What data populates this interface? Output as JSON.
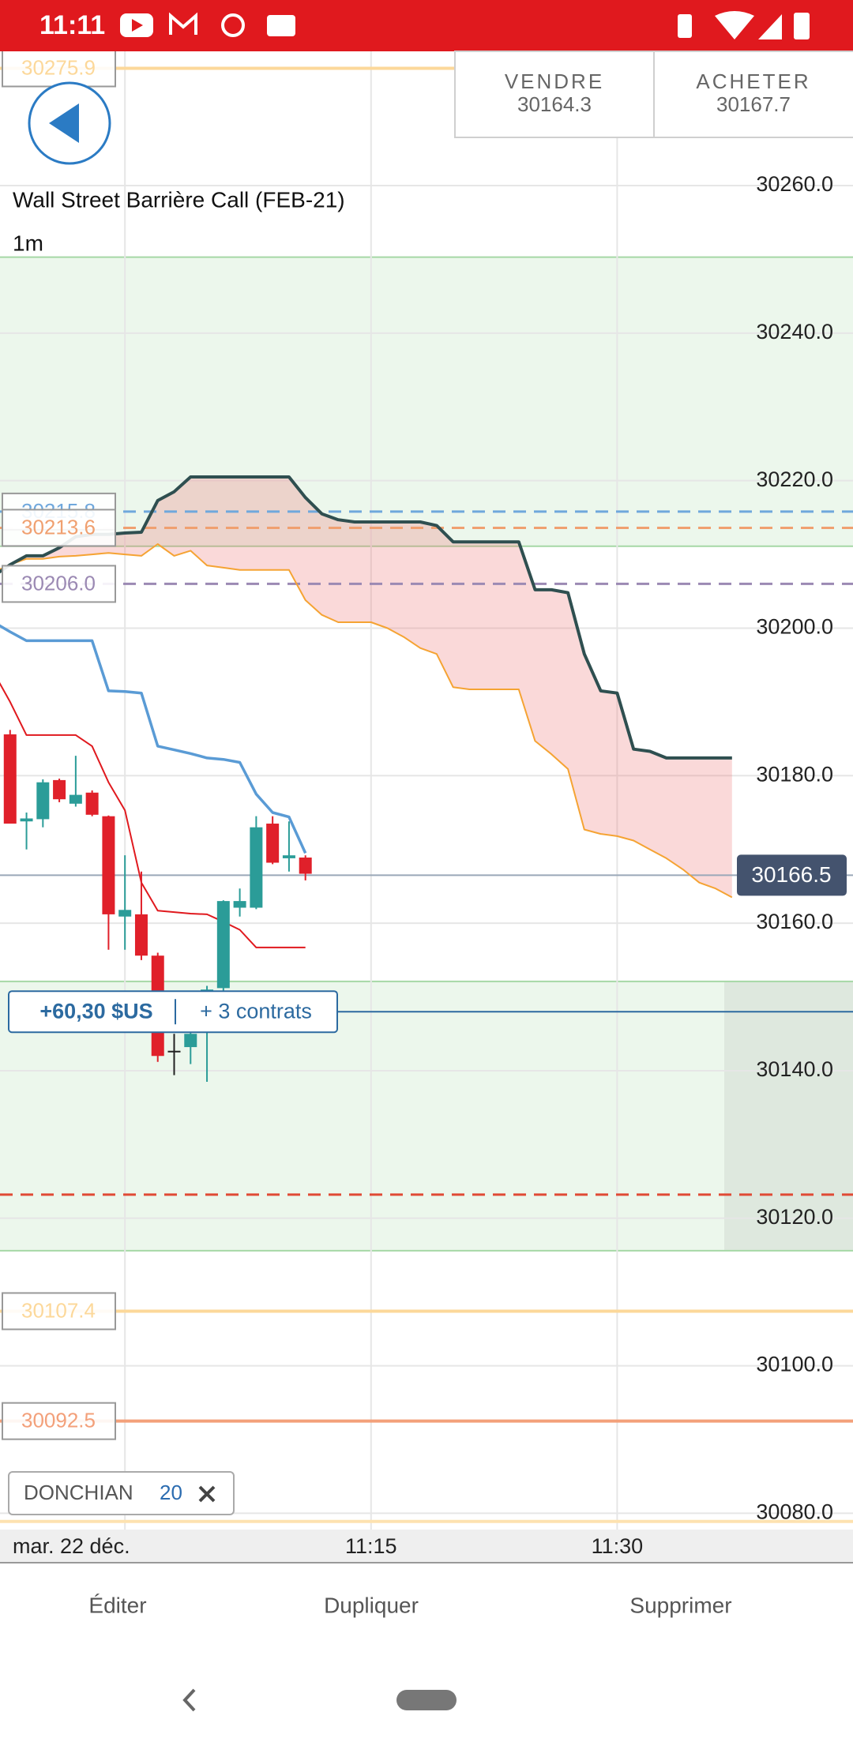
{
  "status_bar": {
    "time": "11:11"
  },
  "header": {
    "sell": {
      "label": "VENDRE",
      "price": 30164.3
    },
    "buy": {
      "label": "ACHETER",
      "price": 30167.7
    }
  },
  "chart_data": {
    "type": "candlestick",
    "title": "Wall Street Barrière Call (FEB-21)",
    "timeframe": "1m",
    "x": [
      "10:52",
      "10:53",
      "10:54",
      "10:55",
      "10:56",
      "10:57",
      "10:58",
      "10:59",
      "11:00",
      "11:01",
      "11:02",
      "11:03",
      "11:04",
      "11:05",
      "11:06",
      "11:07",
      "11:08",
      "11:09",
      "11:10",
      "11:11",
      "11:12",
      "11:13",
      "11:14",
      "11:15",
      "11:16",
      "11:17",
      "11:18",
      "11:19",
      "11:20",
      "11:21",
      "11:22",
      "11:23",
      "11:24",
      "11:25",
      "11:26",
      "11:27",
      "11:28",
      "11:29",
      "11:30",
      "11:31",
      "11:32",
      "11:33",
      "11:34",
      "11:35",
      "11:36",
      "11:37"
    ],
    "open": [
      null,
      30185.6,
      30173.8,
      30174.1,
      30179.4,
      30176.2,
      30177.7,
      30174.5,
      30160.9,
      30161.2,
      30155.6,
      30142.7,
      30143.2,
      30146.0,
      30151.2,
      30162.1,
      30162.1,
      30173.5,
      30168.8,
      30168.9,
      null,
      null,
      null,
      null,
      null,
      null,
      null,
      null,
      null,
      null,
      null,
      null,
      null,
      null,
      null,
      null,
      null,
      null,
      null,
      null,
      null,
      null,
      null,
      null,
      null,
      null
    ],
    "high": [
      null,
      30186.2,
      30175.0,
      30179.5,
      30179.6,
      30182.7,
      30178.0,
      30174.6,
      30169.2,
      30167.0,
      30156.0,
      30145.0,
      30147.3,
      30151.5,
      30163.1,
      30164.7,
      30174.5,
      30174.5,
      30173.8,
      30169.2,
      null,
      null,
      null,
      null,
      null,
      null,
      null,
      null,
      null,
      null,
      null,
      null,
      null,
      null,
      null,
      null,
      null,
      null,
      null,
      null,
      null,
      null,
      null,
      null,
      null,
      null
    ],
    "low": [
      null,
      30173.5,
      30170.0,
      30173.0,
      30176.4,
      30175.8,
      30174.5,
      30156.4,
      30156.4,
      30155.0,
      30141.2,
      30139.4,
      30140.9,
      30138.5,
      30150.0,
      30160.9,
      30161.9,
      30168.0,
      30167.0,
      30165.8,
      null,
      null,
      null,
      null,
      null,
      null,
      null,
      null,
      null,
      null,
      null,
      null,
      null,
      null,
      null,
      null,
      null,
      null,
      null,
      null,
      null,
      null,
      null,
      null,
      null,
      null
    ],
    "close": [
      null,
      30173.5,
      30174.2,
      30179.1,
      30176.8,
      30177.4,
      30174.7,
      30161.2,
      30161.8,
      30155.6,
      30142.0,
      30142.7,
      30145.0,
      30151.0,
      30163.0,
      30163.0,
      30173.0,
      30168.2,
      30169.2,
      30166.7,
      null,
      null,
      null,
      null,
      null,
      null,
      null,
      null,
      null,
      null,
      null,
      null,
      null,
      null,
      null,
      null,
      null,
      null,
      null,
      null,
      null,
      null,
      null,
      null,
      null,
      null
    ],
    "up_color": "#2b9c98",
    "down_color": "#e0202a",
    "flat_color": "#222222",
    "series": [
      {
        "color": "#2f4f50",
        "width": 4,
        "values": [
          30207.1,
          30208.6,
          30209.8,
          30209.8,
          30210.9,
          30212.4,
          30212.7,
          30212.7,
          30212.9,
          30213.0,
          30217.3,
          30218.5,
          30220.5,
          30220.5,
          30220.5,
          30220.5,
          30220.5,
          30220.5,
          30220.5,
          30217.7,
          30215.5,
          30214.7,
          30214.4,
          30214.4,
          30214.4,
          30214.4,
          30214.4,
          30213.9,
          30211.7,
          30211.7,
          30211.7,
          30211.7,
          30211.7,
          30205.2,
          30205.2,
          30204.8,
          30196.5,
          30191.5,
          30191.2,
          30183.6,
          30183.3,
          30182.4,
          30182.4,
          30182.4,
          30182.4,
          30182.4
        ]
      },
      {
        "color": "#f5a333",
        "width": 2,
        "values": [
          30207.6,
          30208.6,
          30209.4,
          30209.4,
          30209.7,
          30209.8,
          30210.0,
          30210.2,
          30210.0,
          30209.8,
          30211.4,
          30209.8,
          30210.5,
          30208.5,
          30208.2,
          30207.9,
          30207.9,
          30207.9,
          30207.9,
          30203.8,
          30201.8,
          30200.8,
          30200.8,
          30200.8,
          30200.0,
          30198.8,
          30197.3,
          30196.5,
          30192.0,
          30191.7,
          30191.7,
          30191.7,
          30191.7,
          30184.7,
          30182.9,
          30180.9,
          30172.7,
          30172.1,
          30171.8,
          30171.2,
          30170.0,
          30168.8,
          30167.3,
          30165.5,
          30164.7,
          30163.5
        ]
      },
      {
        "color": "#5a9bd5",
        "width": 3.5,
        "values": [
          30200.8,
          30199.5,
          30198.3,
          30198.3,
          30198.3,
          30198.3,
          30198.3,
          30191.5,
          30191.4,
          30191.2,
          30184.0,
          30183.5,
          30183.0,
          30182.4,
          30182.2,
          30181.8,
          30177.5,
          30175.0,
          30174.4,
          30169.5,
          null,
          null,
          null,
          null,
          null,
          null,
          null,
          null,
          null,
          null,
          null,
          null,
          null,
          null,
          null,
          null,
          null,
          null,
          null,
          null,
          null,
          null,
          null,
          null,
          null,
          null
        ]
      },
      {
        "color": "#e0191e",
        "width": 2,
        "values": [
          30194.0,
          30190.0,
          30185.5,
          30185.5,
          30185.5,
          30185.5,
          30184.0,
          30179.1,
          30175.3,
          30165.5,
          30161.7,
          30161.5,
          30161.3,
          30161.2,
          30160.2,
          30159.1,
          30156.7,
          30156.7,
          30156.7,
          30156.7,
          null,
          null,
          null,
          null,
          null,
          null,
          null,
          null,
          null,
          null,
          null,
          null,
          null,
          null,
          null,
          null,
          null,
          null,
          null,
          null,
          null,
          null,
          null,
          null,
          null,
          null
        ]
      }
    ],
    "cloud_color": "rgba(236,120,120,0.28)",
    "zones": [
      {
        "from": 30211.1,
        "to": 30250.3
      },
      {
        "from": 30115.6,
        "to": 30152.1,
        "shaded_right": true
      }
    ],
    "zone_color": "rgba(120,200,120,0.14)",
    "zone_border": "#a6d8a6",
    "levels": [
      {
        "value": 30275.9,
        "color": "#fcd89a",
        "dash": false,
        "boxed": true
      },
      {
        "value": 30215.8,
        "color": "#6fa8dc",
        "dash": true,
        "boxed": true
      },
      {
        "value": 30213.6,
        "color": "#f0a070",
        "dash": true,
        "boxed": true
      },
      {
        "value": 30206,
        "label": "30206.0",
        "color": "#9b89b3",
        "dash": true,
        "boxed": true
      },
      {
        "value": 30123.2,
        "color": "#e04a35",
        "dash": true,
        "boxed": false
      },
      {
        "value": 30107.4,
        "color": "#fcd89a",
        "dash": false,
        "boxed": true
      },
      {
        "value": 30092.5,
        "color": "#f3a07a",
        "dash": false,
        "boxed": true
      },
      {
        "value": 30078.9,
        "color": "#fde2b0",
        "dash": false,
        "boxed": false
      }
    ],
    "current_price": {
      "value": 30166.5,
      "color": "#44536e"
    },
    "position": {
      "value": 30148.0,
      "pnl": "+60,30 $US",
      "contracts": "+ 3 contrats",
      "color": "#2c6aa0"
    },
    "indicator": {
      "name": "DONCHIAN",
      "period": 20
    },
    "x_axis_date": "mar. 22 déc.",
    "xlim": [
      "10:52",
      "11:45"
    ],
    "xticks": [
      {
        "value": "11:00",
        "label": null
      },
      "11:15",
      "11:30"
    ],
    "ylim": [
      30073.3,
      30278.2
    ],
    "yticks": [
      {
        "value": 30080,
        "label": "30080.0"
      },
      {
        "value": 30100,
        "label": "30100.0"
      },
      {
        "value": 30120,
        "label": "30120.0"
      },
      {
        "value": 30140,
        "label": "30140.0"
      },
      {
        "value": 30160,
        "label": "30160.0"
      },
      {
        "value": 30180,
        "label": "30180.0"
      },
      {
        "value": 30200,
        "label": "30200.0"
      },
      {
        "value": 30220,
        "label": "30220.0"
      },
      {
        "value": 30240,
        "label": "30240.0"
      },
      {
        "value": 30260,
        "label": "30260.0"
      }
    ],
    "grid": true
  },
  "actions": [
    "Éditer",
    "Dupliquer",
    "Supprimer"
  ]
}
